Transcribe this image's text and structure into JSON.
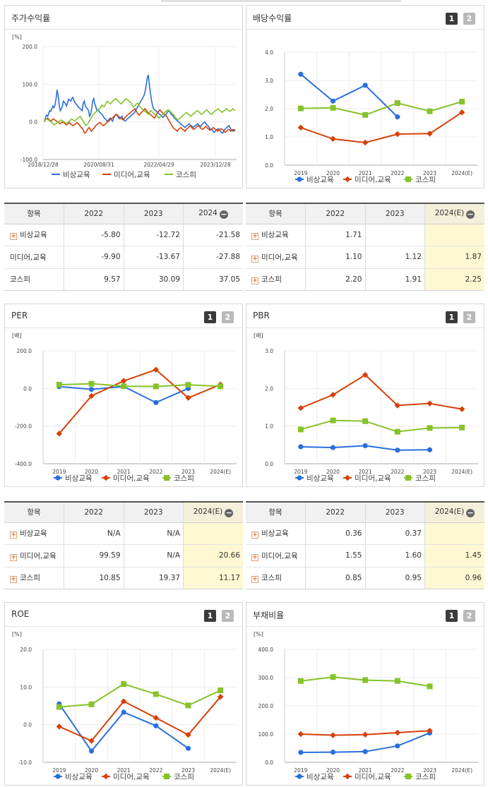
{
  "colors": {
    "s1": "#2a6fdc",
    "s2": "#d7410b",
    "s3": "#86c22a"
  },
  "series_names": [
    "비상교육",
    "미디어,교육",
    "코스피"
  ],
  "panels": [
    {
      "id": "stock",
      "title": "주가수익률",
      "unit": "[%]",
      "has_buttons": false
    },
    {
      "id": "div",
      "title": "배당수익률",
      "unit": "",
      "has_buttons": true
    },
    {
      "id": "per",
      "title": "PER",
      "unit": "[배]",
      "has_buttons": true
    },
    {
      "id": "pbr",
      "title": "PBR",
      "unit": "[배]",
      "has_buttons": true
    },
    {
      "id": "roe",
      "title": "ROE",
      "unit": "[%]",
      "has_buttons": true
    },
    {
      "id": "debt",
      "title": "부채비율",
      "unit": "[%]",
      "has_buttons": true
    }
  ],
  "buttons": [
    "1",
    "2"
  ],
  "chart_data": [
    {
      "id": "stock",
      "type": "line",
      "x_labels": [
        "2018/12/28",
        "2020/08/31",
        "2022/04/29",
        "2023/12/28"
      ],
      "ylim": [
        -100,
        200
      ],
      "yticks": [
        "200.0",
        "100.0",
        "0.0",
        "-100.0"
      ],
      "series": [
        {
          "name": "비상교육",
          "values": [
            0,
            12,
            18,
            15,
            22,
            30,
            28,
            35,
            42,
            38,
            45,
            60,
            85,
            70,
            45,
            30,
            35,
            40,
            55,
            52,
            48,
            42,
            50,
            60,
            58,
            55,
            62,
            65,
            58,
            52,
            48,
            45,
            40,
            38,
            35,
            32,
            30,
            50,
            55,
            42,
            38,
            35,
            30,
            15,
            20,
            35,
            55,
            62,
            48,
            40,
            30,
            32,
            28,
            25,
            22,
            20,
            15,
            10,
            8,
            5,
            2,
            5,
            8,
            10,
            5,
            2,
            10,
            15,
            20,
            18,
            15,
            10,
            8,
            12,
            15,
            8,
            5,
            2,
            5,
            8,
            10,
            12,
            15,
            18,
            20,
            22,
            25,
            30,
            35,
            40,
            45,
            50,
            55,
            60,
            65,
            70,
            80,
            95,
            115,
            125,
            100,
            80,
            60,
            45,
            35,
            32,
            30,
            28,
            25,
            22,
            20,
            18,
            15,
            12,
            15,
            18,
            20,
            25,
            28,
            30,
            25,
            20,
            18,
            15,
            10,
            8,
            5,
            2,
            0,
            -2,
            -5,
            -8,
            -10,
            -12,
            -15,
            -12,
            -10,
            -8,
            -5,
            -8,
            -10,
            -12,
            -15,
            -12,
            -10,
            -8,
            -5,
            -8,
            -10,
            -12,
            -8,
            -5,
            -2,
            0,
            -5,
            -8,
            -10,
            -15,
            -18,
            -20,
            -22,
            -25,
            -28,
            -25,
            -22,
            -20,
            -18,
            -22,
            -25,
            -28,
            -30,
            -25,
            -20,
            -18,
            -15,
            -12,
            -10,
            -15,
            -20,
            -22,
            -25,
            -22,
            -20
          ]
        },
        {
          "name": "미디어,교육",
          "values": [
            0,
            5,
            8,
            10,
            6,
            4,
            2,
            5,
            8,
            6,
            4,
            2,
            0,
            -2,
            -5,
            -3,
            -2,
            0,
            -3,
            -5,
            -8,
            -6,
            -4,
            -2,
            -5,
            -8,
            -10,
            -8,
            -6,
            -4,
            -2,
            -5,
            -8,
            -12,
            -15,
            -18,
            -25,
            -30,
            -28,
            -22,
            -18,
            -15,
            -20,
            -25,
            -22,
            -18,
            -15,
            -10,
            -8,
            -5,
            -3,
            -2,
            -5,
            -8,
            -10,
            -8,
            -5,
            -2,
            0,
            2,
            5,
            8,
            10,
            12,
            15,
            18,
            20,
            18,
            15,
            12,
            10,
            8,
            5,
            8,
            12,
            15,
            18,
            20,
            22,
            25,
            28,
            30,
            32,
            35,
            30,
            25,
            20,
            18,
            22,
            25,
            28,
            30,
            35,
            32,
            28,
            25,
            22,
            20,
            18,
            15,
            12,
            10,
            15,
            20,
            25,
            30,
            32,
            28,
            25,
            22,
            20,
            18,
            15,
            10,
            5,
            0,
            -5,
            -10,
            -15,
            -18,
            -20,
            -22,
            -25,
            -20,
            -18,
            -15,
            -18,
            -20,
            -22,
            -25,
            -20,
            -18,
            -15,
            -12,
            -10,
            -15,
            -18,
            -20,
            -18,
            -15,
            -12,
            -10,
            -12,
            -15,
            -18,
            -20,
            -18,
            -15,
            -12,
            -15,
            -18,
            -20,
            -22,
            -20,
            -18,
            -15,
            -18,
            -20,
            -22,
            -25,
            -22,
            -20,
            -18,
            -20,
            -22,
            -25,
            -28,
            -25,
            -22,
            -20,
            -22,
            -25,
            -22,
            -20,
            -22,
            -25
          ]
        },
        {
          "name": "코스피",
          "values": [
            0,
            5,
            8,
            6,
            4,
            2,
            0,
            -2,
            -5,
            -8,
            -6,
            -4,
            -2,
            0,
            2,
            5,
            3,
            2,
            0,
            -2,
            -5,
            -3,
            0,
            2,
            5,
            8,
            6,
            4,
            2,
            5,
            8,
            10,
            12,
            15,
            10,
            5,
            0,
            -5,
            -10,
            -8,
            -5,
            0,
            5,
            10,
            15,
            20,
            22,
            25,
            28,
            30,
            32,
            35,
            40,
            45,
            42,
            40,
            45,
            50,
            55,
            52,
            50,
            48,
            52,
            55,
            58,
            60,
            62,
            58,
            55,
            52,
            50,
            48,
            52,
            55,
            58,
            62,
            60,
            58,
            55,
            52,
            50,
            45,
            40,
            42,
            45,
            48,
            50,
            45,
            40,
            38,
            35,
            32,
            30,
            28,
            25,
            22,
            20,
            25,
            30,
            28,
            25,
            22,
            20,
            18,
            15,
            12,
            10,
            15,
            18,
            20,
            22,
            25,
            28,
            30,
            32,
            30,
            28,
            25,
            22,
            20,
            15,
            10,
            8,
            5,
            8,
            10,
            12,
            15,
            18,
            20,
            22,
            25,
            22,
            20,
            18,
            15,
            18,
            20,
            22,
            25,
            28,
            30,
            28,
            25,
            22,
            20,
            22,
            25,
            28,
            30,
            32,
            28,
            25,
            22,
            20,
            22,
            25,
            28,
            30,
            32,
            35,
            32,
            30,
            28,
            25,
            28,
            30,
            32,
            35,
            32,
            30,
            28,
            30,
            32,
            35,
            32,
            30
          ]
        }
      ]
    },
    {
      "id": "div",
      "type": "line",
      "categories": [
        "2019",
        "2020",
        "2021",
        "2022",
        "2023",
        "2024(E)"
      ],
      "ylim": [
        0,
        4
      ],
      "yticks": [
        "4.0",
        "3.0",
        "2.0",
        "1.0",
        "0.0"
      ],
      "series": [
        {
          "name": "비상교육",
          "values": [
            3.22,
            2.27,
            2.83,
            1.71,
            null,
            null
          ]
        },
        {
          "name": "미디어,교육",
          "values": [
            1.33,
            0.93,
            0.8,
            1.1,
            1.12,
            1.87
          ]
        },
        {
          "name": "코스피",
          "values": [
            2.01,
            2.03,
            1.78,
            2.2,
            1.91,
            2.25
          ]
        }
      ]
    },
    {
      "id": "per",
      "type": "line",
      "categories": [
        "2019",
        "2020",
        "2021",
        "2022",
        "2023",
        "2024(E)"
      ],
      "ylim": [
        -400,
        200
      ],
      "yticks": [
        "200.0",
        "0.0",
        "-200.0",
        "-400.0"
      ],
      "series": [
        {
          "name": "비상교육",
          "values": [
            10,
            -5,
            10,
            -75,
            0,
            null
          ]
        },
        {
          "name": "미디어,교육",
          "values": [
            -240,
            -40,
            40,
            99.59,
            -50,
            20.66
          ]
        },
        {
          "name": "코스피",
          "values": [
            20,
            25,
            12,
            10.85,
            19.37,
            11.17
          ]
        }
      ]
    },
    {
      "id": "pbr",
      "type": "line",
      "categories": [
        "2019",
        "2020",
        "2021",
        "2022",
        "2023",
        "2024(E)"
      ],
      "ylim": [
        0,
        3
      ],
      "yticks": [
        "3.0",
        "2.0",
        "1.0",
        "0.0"
      ],
      "series": [
        {
          "name": "비상교육",
          "values": [
            0.45,
            0.43,
            0.48,
            0.36,
            0.37,
            null
          ]
        },
        {
          "name": "미디어,교육",
          "values": [
            1.48,
            1.83,
            2.36,
            1.55,
            1.6,
            1.45
          ]
        },
        {
          "name": "코스피",
          "values": [
            0.91,
            1.15,
            1.13,
            0.85,
            0.95,
            0.96
          ]
        }
      ]
    },
    {
      "id": "roe",
      "type": "line",
      "categories": [
        "2019",
        "2020",
        "2021",
        "2022",
        "2023",
        "2024(E)"
      ],
      "ylim": [
        -10,
        20
      ],
      "yticks": [
        "20.0",
        "10.0",
        "0.0",
        "-10.0"
      ],
      "series": [
        {
          "name": "비상교육",
          "values": [
            5.5,
            -7.0,
            3.3,
            -0.3,
            -6.3,
            null
          ]
        },
        {
          "name": "미디어,교육",
          "values": [
            -0.5,
            -4.3,
            6.2,
            1.8,
            -2.7,
            7.4
          ]
        },
        {
          "name": "코스피",
          "values": [
            4.7,
            5.4,
            10.8,
            8.1,
            5.1,
            9.1
          ]
        }
      ]
    },
    {
      "id": "debt",
      "type": "line",
      "categories": [
        "2019",
        "2020",
        "2021",
        "2022",
        "2023",
        "2024(E)"
      ],
      "ylim": [
        0,
        400
      ],
      "yticks": [
        "400.0",
        "300.0",
        "200.0",
        "100.0",
        "0.0"
      ],
      "series": [
        {
          "name": "비상교육",
          "values": [
            35,
            36,
            38,
            58,
            104,
            null
          ]
        },
        {
          "name": "미디어,교육",
          "values": [
            100,
            96,
            98,
            105,
            112,
            null
          ]
        },
        {
          "name": "코스피",
          "values": [
            288,
            302,
            291,
            288,
            269,
            null
          ]
        }
      ]
    }
  ],
  "tables": [
    {
      "id": "stock",
      "header": [
        "항목",
        "2022",
        "2023",
        "2024"
      ],
      "header_collapse": true,
      "highlight_last": false,
      "rows": [
        {
          "label": "비상교육",
          "plus": true,
          "values": [
            "-5.80",
            "-12.72",
            "-21.58"
          ]
        },
        {
          "label": "미디어,교육",
          "plus": false,
          "values": [
            "-9.90",
            "-13.67",
            "-27.88"
          ]
        },
        {
          "label": "코스피",
          "plus": false,
          "values": [
            "9.57",
            "30.09",
            "37.05"
          ]
        }
      ]
    },
    {
      "id": "div",
      "header": [
        "항목",
        "2022",
        "2023",
        "2024(E)"
      ],
      "header_collapse": true,
      "highlight_last": true,
      "rows": [
        {
          "label": "비상교육",
          "plus": true,
          "values": [
            "1.71",
            "",
            ""
          ]
        },
        {
          "label": "미디어,교육",
          "plus": true,
          "values": [
            "1.10",
            "1.12",
            "1.87"
          ]
        },
        {
          "label": "코스피",
          "plus": true,
          "values": [
            "2.20",
            "1.91",
            "2.25"
          ]
        }
      ]
    },
    {
      "id": "per",
      "header": [
        "항목",
        "2022",
        "2023",
        "2024(E)"
      ],
      "header_collapse": true,
      "highlight_last": true,
      "rows": [
        {
          "label": "비상교육",
          "plus": true,
          "values": [
            "N/A",
            "N/A",
            ""
          ]
        },
        {
          "label": "미디어,교육",
          "plus": true,
          "values": [
            "99.59",
            "N/A",
            "20.66"
          ]
        },
        {
          "label": "코스피",
          "plus": true,
          "values": [
            "10.85",
            "19.37",
            "11.17"
          ]
        }
      ]
    },
    {
      "id": "pbr",
      "header": [
        "항목",
        "2022",
        "2023",
        "2024(E)"
      ],
      "header_collapse": true,
      "highlight_last": true,
      "rows": [
        {
          "label": "비상교육",
          "plus": true,
          "values": [
            "0.36",
            "0.37",
            ""
          ]
        },
        {
          "label": "미디어,교육",
          "plus": true,
          "values": [
            "1.55",
            "1.60",
            "1.45"
          ]
        },
        {
          "label": "코스피",
          "plus": true,
          "values": [
            "0.85",
            "0.95",
            "0.96"
          ]
        }
      ]
    }
  ]
}
